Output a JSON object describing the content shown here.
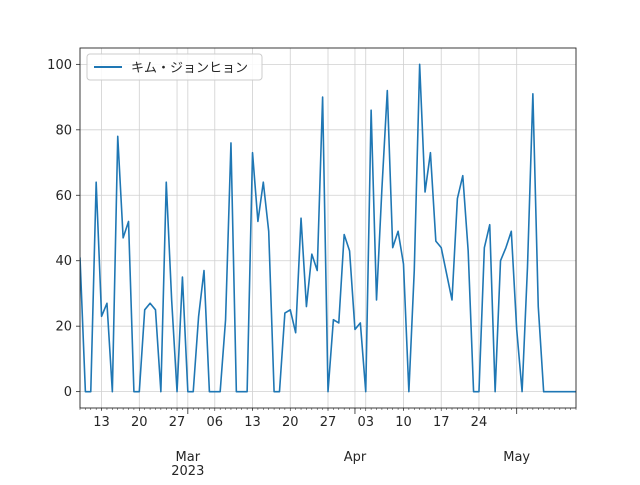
{
  "chart_data": {
    "type": "line",
    "title": "",
    "xlabel": "",
    "ylabel": "",
    "legend_position": "upper-left",
    "grid": true,
    "ylim": [
      -5,
      105
    ],
    "x_range": [
      "2023-02-09",
      "2023-05-12"
    ],
    "series": [
      {
        "name": "キム・ジョンヒョン",
        "color": "#1f77b4",
        "x": [
          "2023-02-09",
          "2023-02-10",
          "2023-02-11",
          "2023-02-12",
          "2023-02-13",
          "2023-02-14",
          "2023-02-15",
          "2023-02-16",
          "2023-02-17",
          "2023-02-18",
          "2023-02-19",
          "2023-02-20",
          "2023-02-21",
          "2023-02-22",
          "2023-02-23",
          "2023-02-24",
          "2023-02-25",
          "2023-02-26",
          "2023-02-27",
          "2023-02-28",
          "2023-03-01",
          "2023-03-02",
          "2023-03-03",
          "2023-03-04",
          "2023-03-05",
          "2023-03-06",
          "2023-03-07",
          "2023-03-08",
          "2023-03-09",
          "2023-03-10",
          "2023-03-11",
          "2023-03-12",
          "2023-03-13",
          "2023-03-14",
          "2023-03-15",
          "2023-03-16",
          "2023-03-17",
          "2023-03-18",
          "2023-03-19",
          "2023-03-20",
          "2023-03-21",
          "2023-03-22",
          "2023-03-23",
          "2023-03-24",
          "2023-03-25",
          "2023-03-26",
          "2023-03-27",
          "2023-03-28",
          "2023-03-29",
          "2023-03-30",
          "2023-03-31",
          "2023-04-01",
          "2023-04-02",
          "2023-04-03",
          "2023-04-04",
          "2023-04-05",
          "2023-04-06",
          "2023-04-07",
          "2023-04-08",
          "2023-04-09",
          "2023-04-10",
          "2023-04-11",
          "2023-04-12",
          "2023-04-13",
          "2023-04-14",
          "2023-04-15",
          "2023-04-16",
          "2023-04-17",
          "2023-04-18",
          "2023-04-19",
          "2023-04-20",
          "2023-04-21",
          "2023-04-22",
          "2023-04-23",
          "2023-04-24",
          "2023-04-25",
          "2023-04-26",
          "2023-04-27",
          "2023-04-28",
          "2023-04-29",
          "2023-04-30",
          "2023-05-01",
          "2023-05-02",
          "2023-05-03",
          "2023-05-04",
          "2023-05-05",
          "2023-05-06",
          "2023-05-07",
          "2023-05-08",
          "2023-05-09",
          "2023-05-10",
          "2023-05-11",
          "2023-05-12"
        ],
        "values": [
          41,
          0,
          0,
          64,
          23,
          27,
          0,
          78,
          47,
          52,
          0,
          0,
          25,
          27,
          25,
          0,
          64,
          28,
          0,
          35,
          0,
          0,
          23,
          37,
          0,
          0,
          0,
          22,
          76,
          0,
          0,
          0,
          73,
          52,
          64,
          49,
          0,
          0,
          24,
          25,
          18,
          53,
          26,
          42,
          37,
          90,
          0,
          22,
          21,
          48,
          43,
          19,
          21,
          0,
          86,
          28,
          62,
          92,
          44,
          49,
          39,
          0,
          37,
          100,
          61,
          73,
          46,
          44,
          36,
          28,
          59,
          66,
          43,
          0,
          0,
          44,
          51,
          0,
          40,
          44,
          49,
          19,
          0,
          38,
          91,
          26,
          0,
          0,
          0,
          0,
          0,
          0,
          0
        ]
      }
    ],
    "x_ticks_major": [
      {
        "date": "2023-03-01",
        "label": "Mar",
        "sublabel": "2023"
      },
      {
        "date": "2023-04-01",
        "label": "Apr",
        "sublabel": ""
      },
      {
        "date": "2023-05-01",
        "label": "May",
        "sublabel": ""
      }
    ],
    "x_ticks_minor": [
      {
        "date": "2023-02-13",
        "label": "13"
      },
      {
        "date": "2023-02-20",
        "label": "20"
      },
      {
        "date": "2023-02-27",
        "label": "27"
      },
      {
        "date": "2023-03-06",
        "label": "06"
      },
      {
        "date": "2023-03-13",
        "label": "13"
      },
      {
        "date": "2023-03-20",
        "label": "20"
      },
      {
        "date": "2023-03-27",
        "label": "27"
      },
      {
        "date": "2023-04-03",
        "label": "03"
      },
      {
        "date": "2023-04-10",
        "label": "10"
      },
      {
        "date": "2023-04-17",
        "label": "17"
      },
      {
        "date": "2023-04-24",
        "label": "24"
      }
    ],
    "y_ticks": [
      0,
      20,
      40,
      60,
      80,
      100
    ]
  }
}
